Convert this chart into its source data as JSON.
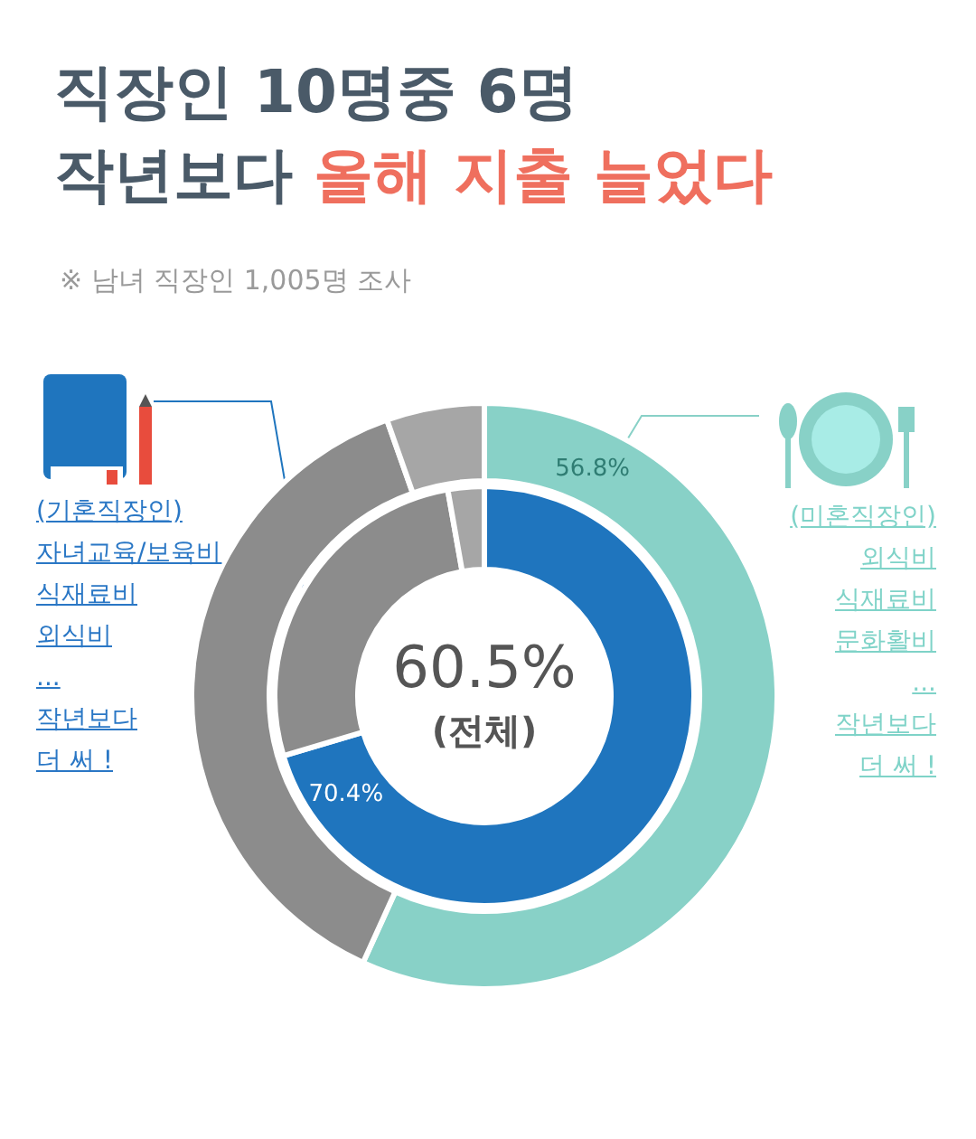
{
  "chart_data": {
    "type": "donut",
    "title": "직장인 10명중 6명 작년보다",
    "subtitle": "올해 지출 늘었다",
    "categories": [
      null,
      null,
      null
    ],
    "series": [
      {
        "values": [
          56.8,
          37.8,
          5.4
        ],
        "colors": [
          "#88d1c7",
          "#8c8c8c",
          "#a6a6a6"
        ],
        "value_labels": [
          "56.8%",
          null,
          null
        ]
      },
      {
        "values": [
          70.4,
          26.8,
          2.8
        ],
        "colors": [
          "#1f75be",
          "#8c8c8c",
          "#a6a6a6"
        ],
        "value_labels": [
          "70.4%",
          null,
          null
        ]
      }
    ],
    "annotations": [
      "※ 남녀 직장인 1,005명 조사",
      "60.5%",
      "(전체)",
      "(기혼직장인)",
      "자녀교육/보육비",
      "식재료비",
      "외식비",
      "...",
      "작년보다",
      "더 써 !",
      "(미혼직장인)",
      "외식비",
      "식재료비",
      "문화활비",
      "...",
      "작년보다",
      "더 써 !"
    ]
  }
}
